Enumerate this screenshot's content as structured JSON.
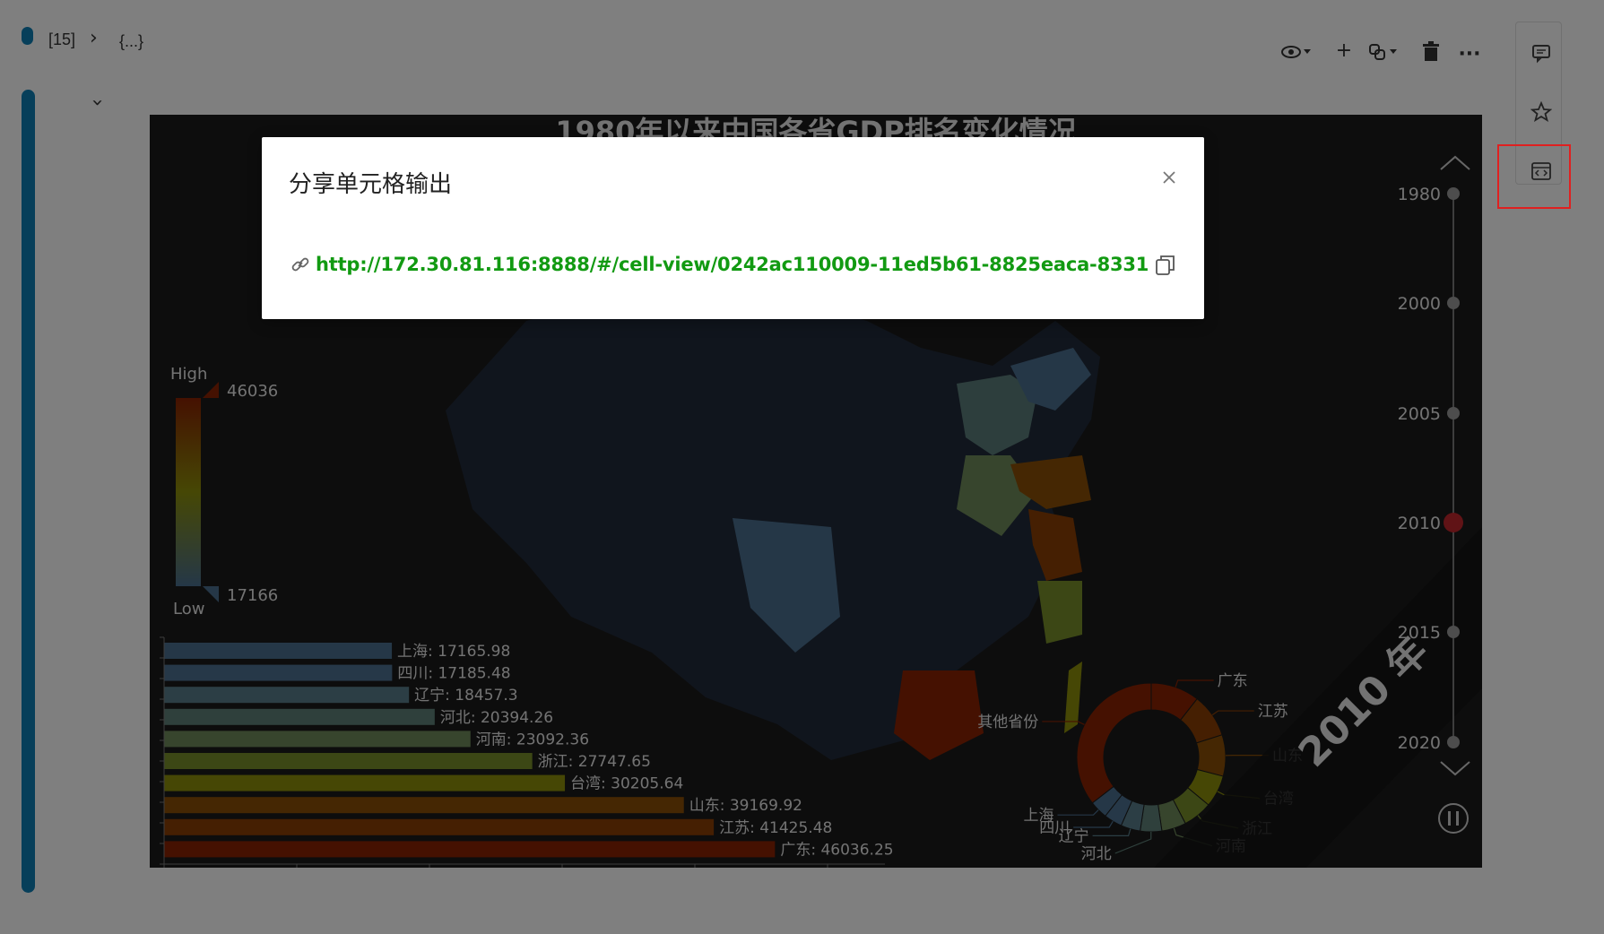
{
  "header": {
    "cell_index": "[15]",
    "breadcrumb": "{...}"
  },
  "chart_data": {
    "type": "bar",
    "title": "1980年以来中国各省GDP排名变化情况",
    "categories": [
      "上海",
      "四川",
      "辽宁",
      "河北",
      "河南",
      "浙江",
      "台湾",
      "山东",
      "江苏",
      "广东"
    ],
    "values": [
      17165.98,
      17185.48,
      18457.3,
      20394.26,
      23092.36,
      27747.65,
      30205.64,
      39169.92,
      41425.48,
      46036.25
    ],
    "bar_labels": [
      "上海: 17165.98",
      "四川: 17185.48",
      "辽宁: 18457.3",
      "河北: 20394.26",
      "河南: 23092.36",
      "浙江: 27747.65",
      "台湾: 30205.64",
      "山东: 39169.92",
      "江苏: 41425.48",
      "广东: 46036.25"
    ],
    "bar_colors": [
      "#4a6f8f",
      "#4d7090",
      "#587d8a",
      "#5e8078",
      "#6e8a5a",
      "#788f2a",
      "#8c8f0a",
      "#8a4f06",
      "#8a3e04",
      "#8a2202"
    ],
    "xlim": [
      0,
      50000
    ],
    "visual_map": {
      "high_label": "High",
      "low_label": "Low",
      "max": "46036",
      "min": "17166"
    },
    "pie_labels": [
      "广东",
      "江苏",
      "山东",
      "台湾",
      "浙江",
      "河南",
      "河北",
      "辽宁",
      "四川",
      "上海",
      "其他省份"
    ],
    "timeline": {
      "years": [
        "1980",
        "2000",
        "2005",
        "2010",
        "2015",
        "2020"
      ],
      "current": "2010",
      "watermark": "2010 年"
    }
  },
  "modal": {
    "title": "分享单元格输出",
    "link": "http://172.30.81.116:8888/#/cell-view/0242ac110009-11ed5b61-8825eaca-8331"
  },
  "colors": {
    "link": "#129a12",
    "highlight": "#e02020",
    "gutter": "#0e7fb4",
    "timeline_current": "#c0262c"
  }
}
